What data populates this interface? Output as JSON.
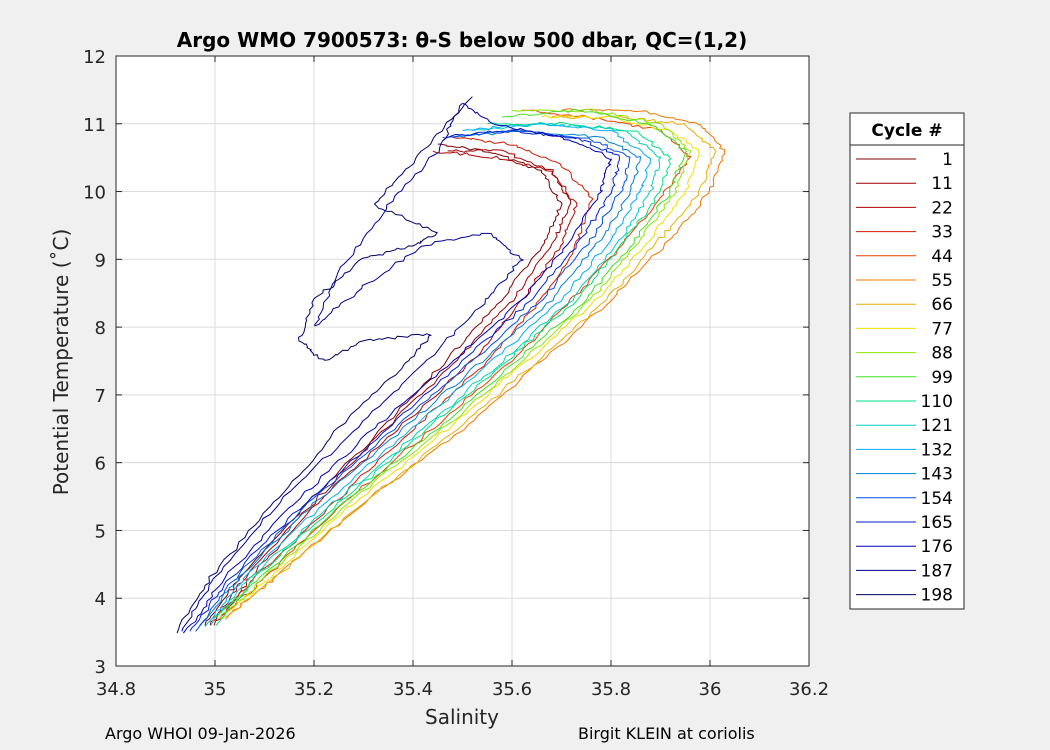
{
  "chart_data": {
    "type": "line",
    "title": "Argo WMO 7900573: θ-S below 500 dbar,  QC=(1,2)",
    "xlabel": "Salinity",
    "ylabel": "Potential Temperature (˚C)",
    "xlim": [
      34.8,
      36.2
    ],
    "ylim": [
      3,
      12
    ],
    "x_ticks": [
      "34.8",
      "35",
      "35.2",
      "35.4",
      "35.6",
      "35.8",
      "36",
      "36.2"
    ],
    "y_ticks": [
      "3",
      "4",
      "5",
      "6",
      "7",
      "8",
      "9",
      "10",
      "11",
      "12"
    ],
    "grid": true,
    "legend_title": "Cycle #",
    "legend_position": "right",
    "series": [
      {
        "name": "1",
        "color": "#800000",
        "x": [
          34.98,
          35.05,
          35.2,
          35.35,
          35.48,
          35.58,
          35.66,
          35.7,
          35.66,
          35.55,
          35.45
        ],
        "y": [
          3.6,
          4.3,
          5.5,
          6.6,
          7.6,
          8.4,
          9.2,
          9.8,
          10.3,
          10.6,
          10.7
        ]
      },
      {
        "name": "11",
        "color": "#9a0000",
        "x": [
          34.99,
          35.06,
          35.21,
          35.36,
          35.5,
          35.6,
          35.68,
          35.72,
          35.68,
          35.58,
          35.47
        ],
        "y": [
          3.6,
          4.3,
          5.5,
          6.6,
          7.6,
          8.4,
          9.2,
          9.8,
          10.3,
          10.6,
          10.6
        ]
      },
      {
        "name": "22",
        "color": "#b30000",
        "x": [
          35.0,
          35.07,
          35.22,
          35.37,
          35.52,
          35.62,
          35.7,
          35.73,
          35.68,
          35.57,
          35.44
        ],
        "y": [
          3.6,
          4.3,
          5.5,
          6.5,
          7.5,
          8.4,
          9.2,
          9.8,
          10.3,
          10.5,
          10.6
        ]
      },
      {
        "name": "33",
        "color": "#d41a00",
        "x": [
          35.0,
          35.08,
          35.24,
          35.4,
          35.55,
          35.66,
          35.73,
          35.76,
          35.7,
          35.6,
          35.48
        ],
        "y": [
          3.7,
          4.3,
          5.4,
          6.5,
          7.5,
          8.4,
          9.2,
          9.9,
          10.4,
          10.7,
          10.8
        ]
      },
      {
        "name": "44",
        "color": "#e64000",
        "x": [
          35.01,
          35.1,
          35.26,
          35.44,
          35.6,
          35.72,
          35.82,
          35.9,
          35.96,
          35.9,
          35.75,
          35.62
        ],
        "y": [
          3.7,
          4.3,
          5.4,
          6.5,
          7.5,
          8.4,
          9.2,
          9.9,
          10.5,
          10.9,
          11.1,
          11.2
        ]
      },
      {
        "name": "55",
        "color": "#f07800",
        "x": [
          35.02,
          35.12,
          35.3,
          35.5,
          35.66,
          35.8,
          35.92,
          36.0,
          36.03,
          35.98,
          35.85,
          35.7
        ],
        "y": [
          3.7,
          4.3,
          5.4,
          6.5,
          7.5,
          8.4,
          9.3,
          10.0,
          10.6,
          11.0,
          11.2,
          11.2
        ]
      },
      {
        "name": "66",
        "color": "#e6b000",
        "x": [
          35.02,
          35.12,
          35.3,
          35.49,
          35.65,
          35.79,
          35.9,
          35.98,
          36.01,
          35.95,
          35.82,
          35.68
        ],
        "y": [
          3.7,
          4.3,
          5.4,
          6.5,
          7.5,
          8.4,
          9.3,
          10.0,
          10.6,
          11.0,
          11.1,
          11.1
        ]
      },
      {
        "name": "77",
        "color": "#f0e000",
        "x": [
          35.01,
          35.11,
          35.28,
          35.47,
          35.63,
          35.77,
          35.88,
          35.95,
          35.98,
          35.92,
          35.8,
          35.66
        ],
        "y": [
          3.7,
          4.3,
          5.4,
          6.5,
          7.5,
          8.4,
          9.3,
          10.0,
          10.6,
          10.9,
          11.1,
          11.1
        ]
      },
      {
        "name": "88",
        "color": "#90e600",
        "x": [
          35.01,
          35.1,
          35.27,
          35.46,
          35.62,
          35.76,
          35.86,
          35.93,
          35.96,
          35.9,
          35.76,
          35.6
        ],
        "y": [
          3.7,
          4.3,
          5.4,
          6.5,
          7.5,
          8.4,
          9.3,
          10.0,
          10.6,
          11.0,
          11.2,
          11.2
        ]
      },
      {
        "name": "99",
        "color": "#40e020",
        "x": [
          35.0,
          35.09,
          35.26,
          35.45,
          35.61,
          35.75,
          35.85,
          35.92,
          35.95,
          35.88,
          35.74,
          35.58
        ],
        "y": [
          3.7,
          4.3,
          5.4,
          6.5,
          7.5,
          8.4,
          9.3,
          10.0,
          10.6,
          11.0,
          11.2,
          11.1
        ]
      },
      {
        "name": "110",
        "color": "#00e080",
        "x": [
          35.0,
          35.08,
          35.25,
          35.43,
          35.59,
          35.73,
          35.83,
          35.9,
          35.92,
          35.85,
          35.7,
          35.55
        ],
        "y": [
          3.6,
          4.3,
          5.4,
          6.5,
          7.5,
          8.4,
          9.3,
          10.0,
          10.5,
          10.9,
          11.0,
          11.0
        ]
      },
      {
        "name": "121",
        "color": "#00d0c0",
        "x": [
          34.99,
          35.07,
          35.24,
          35.42,
          35.58,
          35.72,
          35.82,
          35.88,
          35.9,
          35.83,
          35.68,
          35.52
        ],
        "y": [
          3.6,
          4.3,
          5.4,
          6.5,
          7.5,
          8.4,
          9.3,
          10.0,
          10.5,
          10.9,
          11.0,
          10.9
        ]
      },
      {
        "name": "132",
        "color": "#00b0f0",
        "x": [
          34.98,
          35.06,
          35.22,
          35.4,
          35.56,
          35.7,
          35.8,
          35.86,
          35.88,
          35.8,
          35.65,
          35.5
        ],
        "y": [
          3.6,
          4.3,
          5.4,
          6.5,
          7.5,
          8.4,
          9.3,
          10.0,
          10.5,
          10.9,
          11.0,
          10.9
        ]
      },
      {
        "name": "143",
        "color": "#0080d0",
        "x": [
          34.97,
          35.05,
          35.2,
          35.38,
          35.54,
          35.68,
          35.78,
          35.84,
          35.86,
          35.78,
          35.62,
          35.48
        ],
        "y": [
          3.6,
          4.3,
          5.4,
          6.5,
          7.5,
          8.4,
          9.3,
          10.0,
          10.5,
          10.8,
          10.9,
          10.8
        ]
      },
      {
        "name": "154",
        "color": "#0050e0",
        "x": [
          34.96,
          35.04,
          35.19,
          35.36,
          35.52,
          35.66,
          35.76,
          35.82,
          35.84,
          35.75,
          35.6,
          35.47
        ],
        "y": [
          3.5,
          4.3,
          5.4,
          6.5,
          7.5,
          8.4,
          9.3,
          10.0,
          10.5,
          10.8,
          10.9,
          10.8
        ]
      },
      {
        "name": "165",
        "color": "#0020d0",
        "x": [
          34.95,
          35.03,
          35.18,
          35.35,
          35.5,
          35.64,
          35.74,
          35.8,
          35.82,
          35.73,
          35.58,
          35.46
        ],
        "y": [
          3.5,
          4.3,
          5.4,
          6.5,
          7.5,
          8.4,
          9.3,
          10.0,
          10.5,
          10.8,
          10.9,
          10.8
        ]
      },
      {
        "name": "176",
        "color": "#0000b0",
        "x": [
          34.94,
          35.02,
          35.16,
          35.32,
          35.48,
          35.62,
          35.72,
          35.78,
          35.8,
          35.7,
          35.56,
          35.5
        ],
        "y": [
          3.5,
          4.3,
          5.4,
          6.5,
          7.5,
          8.4,
          9.3,
          10.0,
          10.5,
          10.8,
          11.0,
          11.3
        ]
      },
      {
        "name": "187",
        "color": "#000090",
        "x": [
          34.93,
          35.0,
          35.14,
          35.3,
          35.44,
          35.55,
          35.62,
          35.55,
          35.42,
          35.3,
          35.2,
          35.25,
          35.35,
          35.45,
          35.5
        ],
        "y": [
          3.5,
          4.3,
          5.5,
          6.6,
          7.6,
          8.4,
          9.0,
          9.4,
          9.2,
          8.6,
          8.0,
          8.8,
          9.8,
          10.6,
          11.3
        ]
      },
      {
        "name": "198",
        "color": "#000066",
        "x": [
          34.92,
          34.99,
          35.13,
          35.26,
          35.38,
          35.44,
          35.3,
          35.22,
          35.17,
          35.2,
          35.3,
          35.4,
          35.45,
          35.32,
          35.42,
          35.52
        ],
        "y": [
          3.5,
          4.3,
          5.5,
          6.6,
          7.4,
          7.9,
          7.8,
          7.5,
          7.8,
          8.4,
          9.0,
          9.2,
          9.4,
          9.8,
          10.6,
          11.4
        ]
      }
    ]
  },
  "footer": {
    "left": "Argo WHOI 09-Jan-2026",
    "right": "Birgit KLEIN at coriolis"
  }
}
